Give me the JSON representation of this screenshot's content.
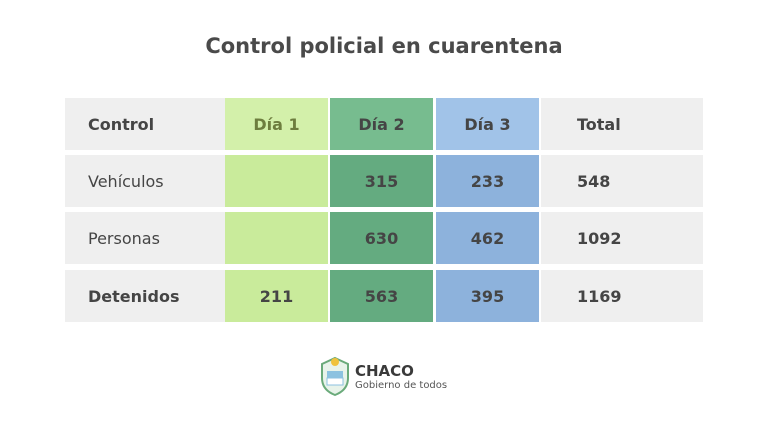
{
  "header": {
    "title": "Control policial en cuarentena"
  },
  "table": {
    "columns": [
      "Control",
      "Día 1",
      "Día 2",
      "Día 3",
      "Total"
    ],
    "rows": [
      [
        "Vehículos",
        null,
        315,
        233,
        548
      ],
      [
        "Personas",
        null,
        630,
        462,
        1092
      ],
      [
        "Detenidos",
        211,
        563,
        395,
        1169
      ]
    ]
  },
  "footer": {
    "brand": "CHACO",
    "slogan": "Gobierno de todos"
  }
}
